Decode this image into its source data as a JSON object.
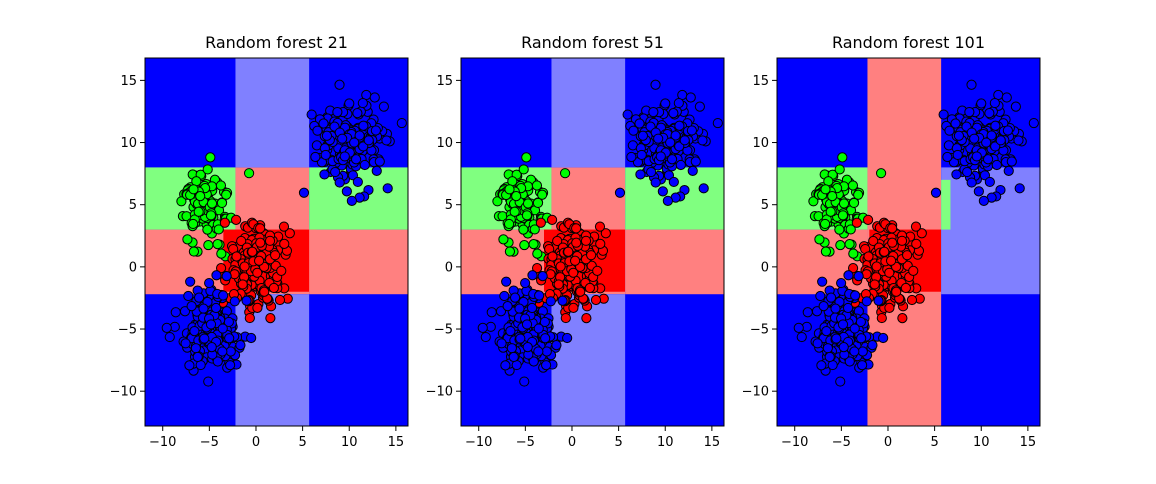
{
  "figure": {
    "background": "#ffffff"
  },
  "chart_data": [
    {
      "type": "scatter",
      "title": "Random forest 21",
      "xlabel": "",
      "ylabel": "",
      "xlim": [
        -11.9,
        16.3
      ],
      "ylim": [
        -12.8,
        16.8
      ],
      "xticks": [
        -10,
        -5,
        0,
        5,
        10,
        15
      ],
      "yticks": [
        -10,
        -5,
        0,
        5,
        10,
        15
      ],
      "grid": false,
      "regions": [
        {
          "x": [
            -11.9,
            5.7
          ],
          "y": [
            -2.2,
            3.0
          ],
          "class": "red",
          "shade": "light"
        },
        {
          "x": [
            -11.9,
            -2.2
          ],
          "y": [
            3.0,
            8.0
          ],
          "class": "green",
          "shade": "light"
        },
        {
          "x": [
            -2.2,
            5.7
          ],
          "y": [
            3.0,
            8.0
          ],
          "class": "red",
          "shade": "light"
        },
        {
          "x": [
            -3.5,
            6.5
          ],
          "y": [
            -2.0,
            3.0
          ],
          "class": "red",
          "shade": "full"
        },
        {
          "x": [
            -2.2,
            5.7
          ],
          "y": [
            8.0,
            16.8
          ],
          "class": "blue",
          "shade": "light"
        },
        {
          "x": [
            -2.2,
            5.7
          ],
          "y": [
            -12.8,
            -2.2
          ],
          "class": "blue",
          "shade": "light"
        },
        {
          "x": [
            5.7,
            16.3
          ],
          "y": [
            -2.2,
            3.0
          ],
          "class": "red",
          "shade": "light"
        },
        {
          "x": [
            5.7,
            16.3
          ],
          "y": [
            3.0,
            8.0
          ],
          "class": "green",
          "shade": "light"
        }
      ],
      "clusters": [
        {
          "class": "blue",
          "center": [
            10.0,
            10.0
          ],
          "spread": [
            1.9,
            1.8
          ],
          "count": 180
        },
        {
          "class": "green",
          "center": [
            -5.5,
            5.0
          ],
          "spread": [
            1.4,
            1.5
          ],
          "count": 110
        },
        {
          "class": "red",
          "center": [
            0.0,
            0.0
          ],
          "spread": [
            1.6,
            1.7
          ],
          "count": 190
        },
        {
          "class": "blue",
          "center": [
            -5.0,
            -5.0
          ],
          "spread": [
            1.6,
            1.7
          ],
          "count": 180
        }
      ]
    },
    {
      "type": "scatter",
      "title": "Random forest 51",
      "xlabel": "",
      "ylabel": "",
      "xlim": [
        -11.9,
        16.3
      ],
      "ylim": [
        -12.8,
        16.8
      ],
      "xticks": [
        -10,
        -5,
        0,
        5,
        10,
        15
      ],
      "yticks": [
        -10,
        -5,
        0,
        5,
        10,
        15
      ],
      "grid": false,
      "regions": [
        {
          "x": [
            -11.9,
            5.7
          ],
          "y": [
            -2.2,
            3.0
          ],
          "class": "red",
          "shade": "light"
        },
        {
          "x": [
            -11.9,
            -2.2
          ],
          "y": [
            3.0,
            8.0
          ],
          "class": "green",
          "shade": "light"
        },
        {
          "x": [
            -2.2,
            5.7
          ],
          "y": [
            3.0,
            8.0
          ],
          "class": "red",
          "shade": "light"
        },
        {
          "x": [
            -3.0,
            5.7
          ],
          "y": [
            -2.0,
            3.0
          ],
          "class": "red",
          "shade": "full"
        },
        {
          "x": [
            -2.2,
            5.7
          ],
          "y": [
            8.0,
            16.8
          ],
          "class": "blue",
          "shade": "light"
        },
        {
          "x": [
            -2.2,
            5.7
          ],
          "y": [
            -12.8,
            -2.2
          ],
          "class": "blue",
          "shade": "light"
        },
        {
          "x": [
            5.7,
            16.3
          ],
          "y": [
            -2.2,
            3.0
          ],
          "class": "red",
          "shade": "light"
        },
        {
          "x": [
            5.7,
            16.3
          ],
          "y": [
            3.0,
            8.0
          ],
          "class": "green",
          "shade": "light"
        }
      ],
      "clusters": [
        {
          "class": "blue",
          "center": [
            10.0,
            10.0
          ],
          "spread": [
            1.9,
            1.8
          ],
          "count": 180
        },
        {
          "class": "green",
          "center": [
            -5.5,
            5.0
          ],
          "spread": [
            1.4,
            1.5
          ],
          "count": 110
        },
        {
          "class": "red",
          "center": [
            0.0,
            0.0
          ],
          "spread": [
            1.6,
            1.7
          ],
          "count": 190
        },
        {
          "class": "blue",
          "center": [
            -5.0,
            -5.0
          ],
          "spread": [
            1.6,
            1.7
          ],
          "count": 180
        }
      ]
    },
    {
      "type": "scatter",
      "title": "Random forest 101",
      "xlabel": "",
      "ylabel": "",
      "xlim": [
        -11.9,
        16.3
      ],
      "ylim": [
        -12.8,
        16.8
      ],
      "xticks": [
        -10,
        -5,
        0,
        5,
        10,
        15
      ],
      "yticks": [
        -10,
        -5,
        0,
        5,
        10,
        15
      ],
      "grid": false,
      "regions": [
        {
          "x": [
            -11.9,
            -2.2
          ],
          "y": [
            -2.2,
            3.0
          ],
          "class": "red",
          "shade": "light"
        },
        {
          "x": [
            -11.9,
            -2.2
          ],
          "y": [
            3.0,
            8.0
          ],
          "class": "green",
          "shade": "light"
        },
        {
          "x": [
            -2.2,
            5.7
          ],
          "y": [
            -12.8,
            16.8
          ],
          "class": "red",
          "shade": "light"
        },
        {
          "x": [
            -2.0,
            5.7
          ],
          "y": [
            -2.0,
            3.0
          ],
          "class": "red",
          "shade": "full"
        },
        {
          "x": [
            5.7,
            16.3
          ],
          "y": [
            -2.2,
            8.0
          ],
          "class": "blue",
          "shade": "light"
        },
        {
          "x": [
            5.7,
            6.7
          ],
          "y": [
            3.0,
            7.0
          ],
          "class": "green",
          "shade": "light"
        }
      ],
      "clusters": [
        {
          "class": "blue",
          "center": [
            10.0,
            10.0
          ],
          "spread": [
            1.9,
            1.8
          ],
          "count": 180
        },
        {
          "class": "green",
          "center": [
            -5.5,
            5.0
          ],
          "spread": [
            1.4,
            1.5
          ],
          "count": 110
        },
        {
          "class": "red",
          "center": [
            0.0,
            0.0
          ],
          "spread": [
            1.6,
            1.7
          ],
          "count": 190
        },
        {
          "class": "blue",
          "center": [
            -5.0,
            -5.0
          ],
          "spread": [
            1.6,
            1.7
          ],
          "count": 180
        }
      ]
    }
  ],
  "colors": {
    "blue": "#0000ff",
    "green": "#00ff00",
    "red": "#ff0000",
    "light_blue": "#8080ff",
    "light_green": "#80ff80",
    "light_red": "#ff8080",
    "edge": "#000000"
  }
}
